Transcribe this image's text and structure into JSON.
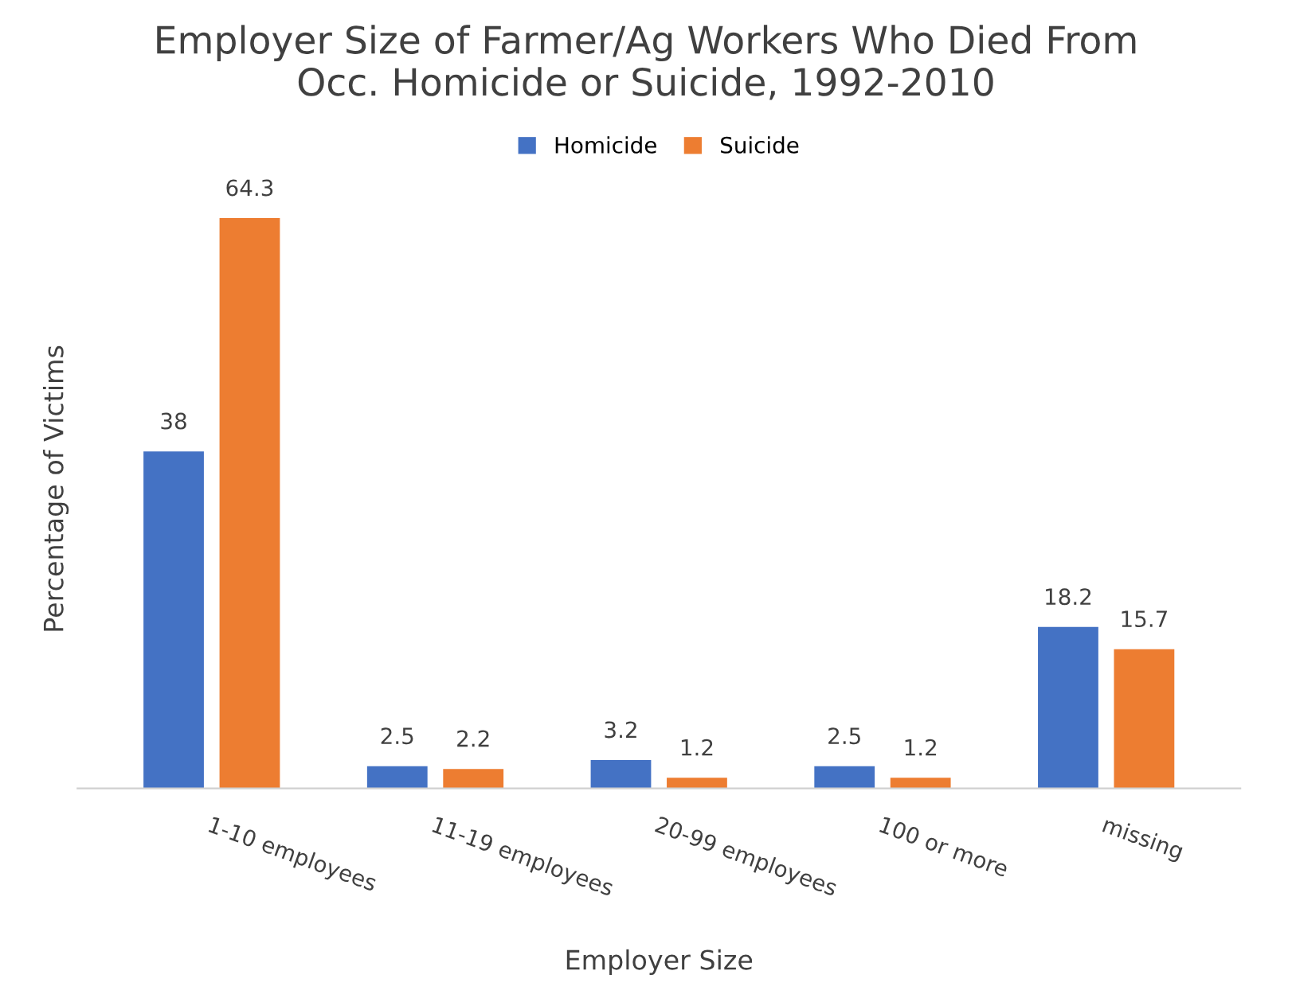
{
  "chart_data": {
    "type": "bar",
    "title": "Employer Size of Farmer/Ag Workers Who Died From\nOcc. Homicide or Suicide, 1992-2010",
    "xlabel": "Employer Size",
    "ylabel": "Percentage of Victims",
    "categories": [
      "1-10 employees",
      "11-19 employees",
      "20-99 employees",
      "100 or more",
      "missing"
    ],
    "series": [
      {
        "name": "Homicide",
        "color": "#4472c4",
        "values": [
          38,
          2.5,
          3.2,
          2.5,
          18.2
        ]
      },
      {
        "name": "Suicide",
        "color": "#ed7d31",
        "values": [
          64.3,
          2.2,
          1.2,
          1.2,
          15.7
        ]
      }
    ],
    "tick_labels": "x",
    "data_labels": true,
    "legend": "top",
    "grid": false
  }
}
